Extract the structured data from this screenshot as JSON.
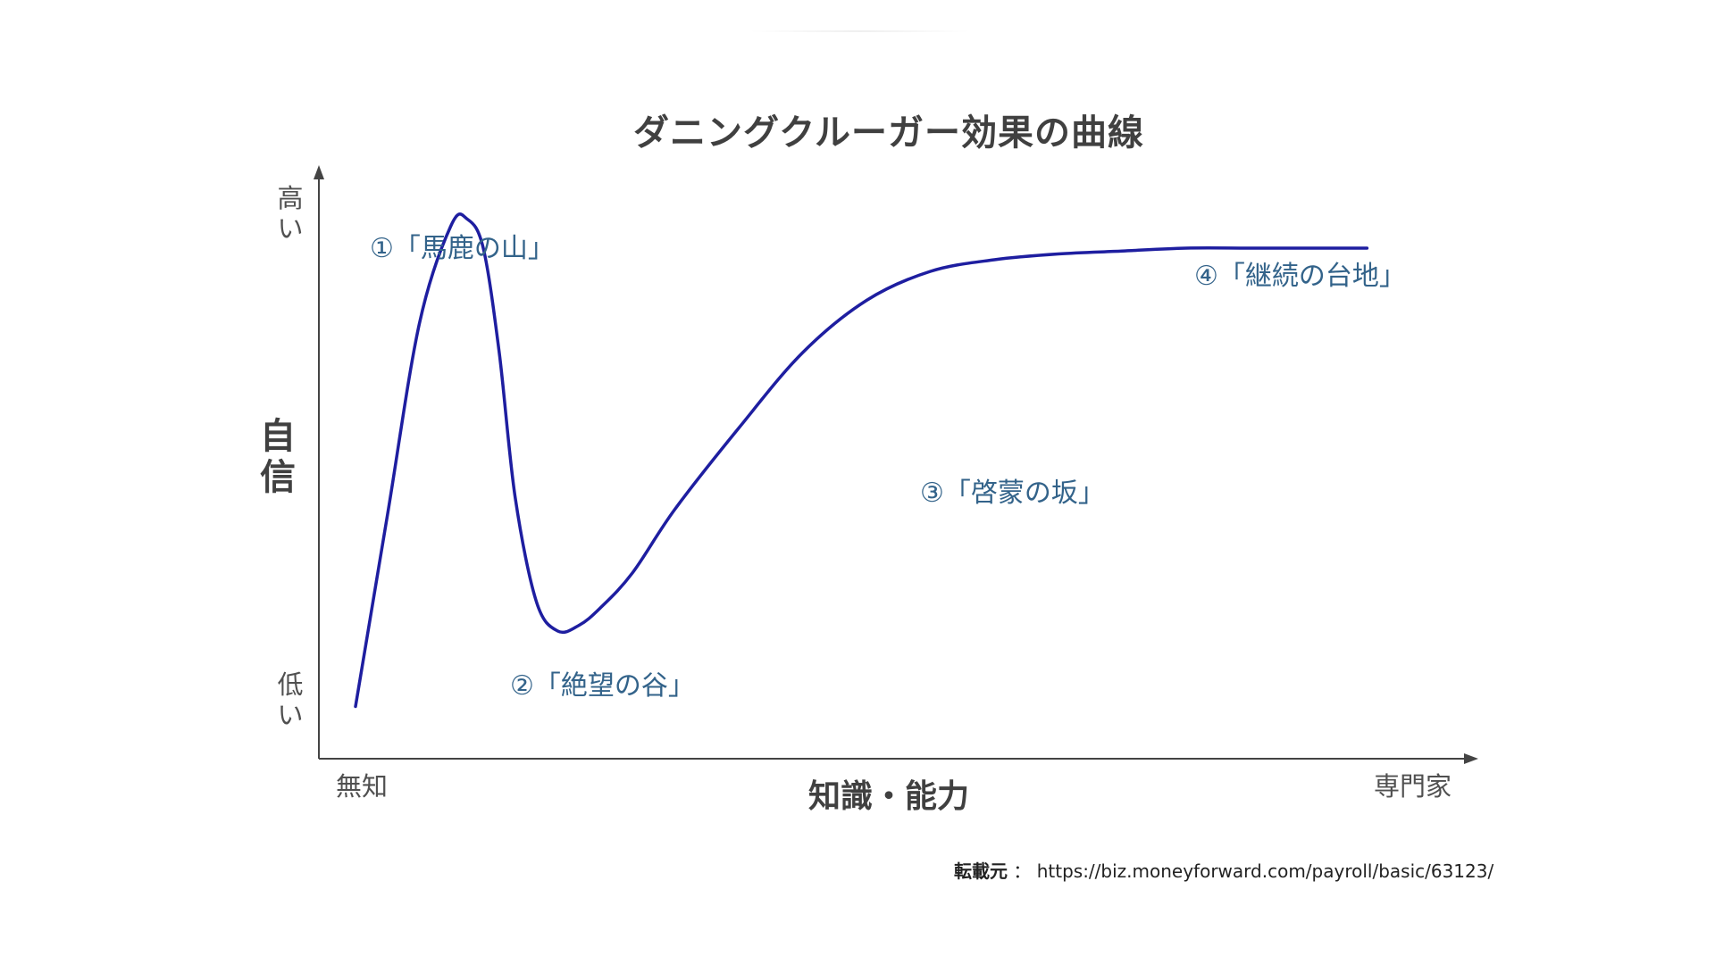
{
  "chart_data": {
    "type": "line",
    "title": "ダニングクルーガー効果の曲線",
    "xlabel": "知識・能力",
    "ylabel": "自信",
    "x_ticks": [
      "無知",
      "専門家"
    ],
    "y_ticks": [
      "高い",
      "低い"
    ],
    "xlim": [
      0,
      100
    ],
    "ylim": [
      0,
      100
    ],
    "series": [
      {
        "color": "#1e1ea0",
        "x": [
          0,
          3,
          6,
          9,
          10.5,
          12,
          13.5,
          15,
          17,
          19,
          21,
          23,
          26,
          30,
          36,
          42,
          48,
          54,
          60,
          66,
          72,
          78,
          84,
          90,
          95
        ],
        "y": [
          9,
          42,
          75,
          92,
          93,
          88,
          70,
          45,
          27,
          22,
          23,
          26,
          32,
          43,
          57,
          70,
          79,
          84,
          86,
          87,
          87.5,
          88,
          88,
          88,
          88
        ]
      }
    ],
    "annotations": [
      {
        "text": "①「馬鹿の山」"
      },
      {
        "text": "②「絶望の谷」"
      },
      {
        "text": "③「啓蒙の坂」"
      },
      {
        "text": "④「継続の台地」"
      }
    ],
    "grid": false,
    "legend": "none"
  },
  "source": {
    "prefix": "転載元",
    "separator": "：",
    "url": "https://biz.moneyforward.com/payroll/basic/63123/"
  },
  "colors": {
    "axis": "#444444",
    "curve": "#1e1ea0",
    "annotation": "#33638a",
    "title": "#404040"
  }
}
